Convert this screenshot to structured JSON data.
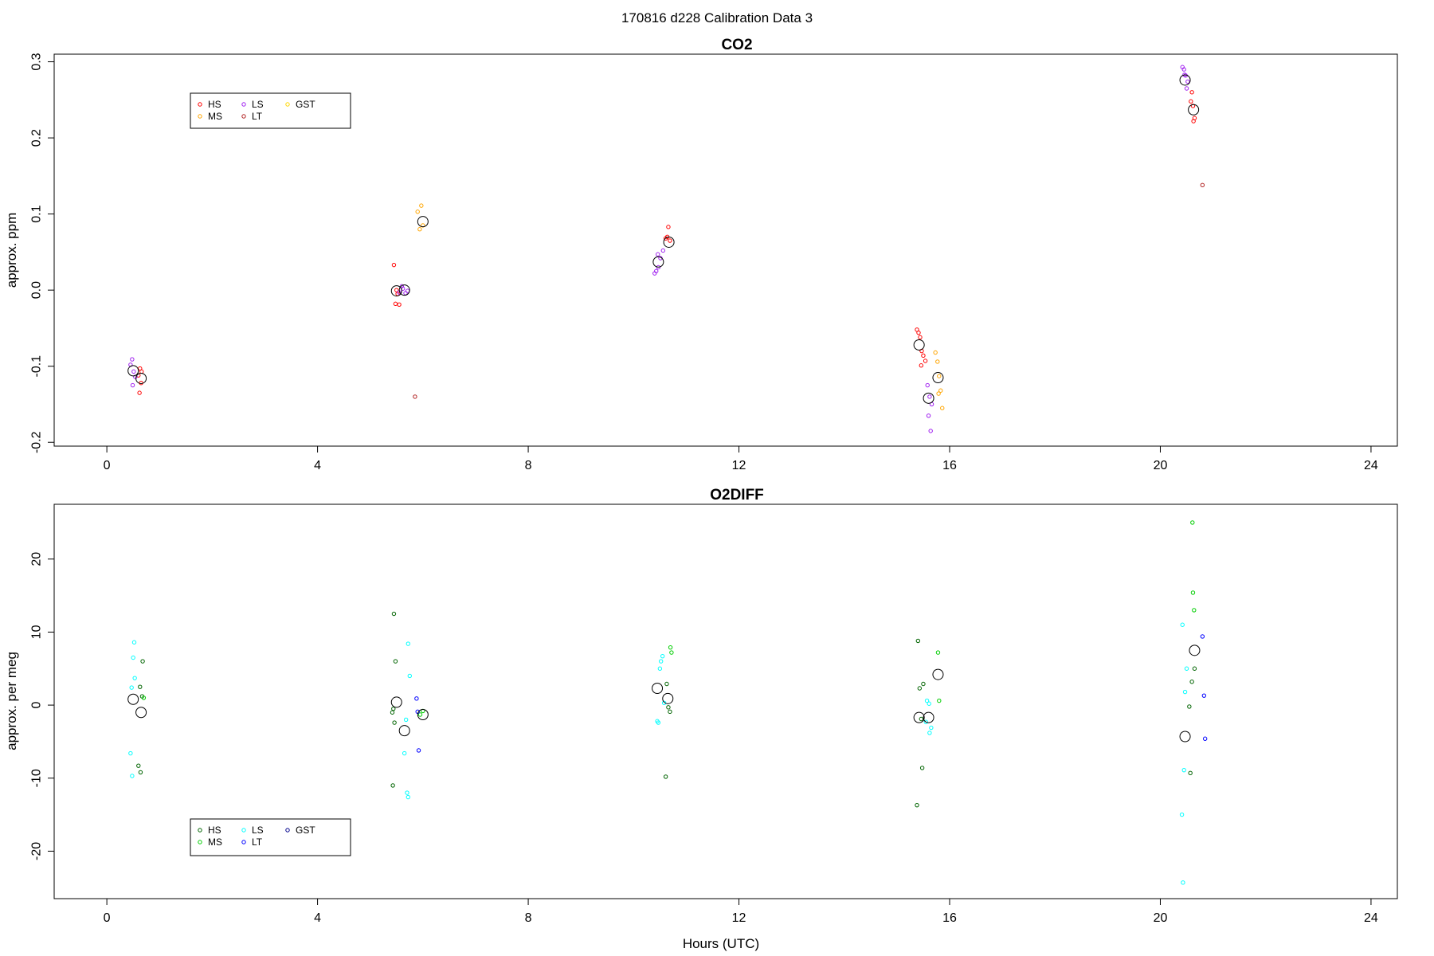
{
  "figure": {
    "title": "170816   d228   Calibration Data 3",
    "xlabel": "Hours (UTC)"
  },
  "chart_data": [
    {
      "type": "scatter",
      "title": "CO2",
      "xlabel": "",
      "ylabel": "approx. ppm",
      "xlim": [
        -1,
        24.5
      ],
      "ylim": [
        -0.205,
        0.31
      ],
      "xticks": [
        0,
        4,
        8,
        12,
        16,
        20,
        24
      ],
      "yticks": [
        -0.2,
        -0.1,
        0.0,
        0.1,
        0.2,
        0.3
      ],
      "ytick_labels": [
        "-0.2",
        "-0.1",
        "0.0",
        "0.1",
        "0.2",
        "0.3"
      ],
      "grid": false,
      "legend_position": "top-left",
      "legend_columns": [
        [
          "HS",
          "MS"
        ],
        [
          "LS",
          "LT"
        ],
        [
          "GST"
        ]
      ],
      "series": [
        {
          "name": "HS",
          "color": "#ff0000",
          "points": [
            [
              0.63,
              -0.103
            ],
            [
              0.66,
              -0.107
            ],
            [
              0.6,
              -0.112
            ],
            [
              0.65,
              -0.122
            ],
            [
              0.62,
              -0.135
            ],
            [
              5.45,
              0.033
            ],
            [
              5.52,
              -0.005
            ],
            [
              5.48,
              -0.018
            ],
            [
              5.55,
              -0.019
            ],
            [
              5.5,
              0.0
            ],
            [
              10.66,
              0.083
            ],
            [
              10.61,
              0.068
            ],
            [
              10.69,
              0.065
            ],
            [
              10.64,
              0.07
            ],
            [
              15.38,
              -0.052
            ],
            [
              15.41,
              -0.056
            ],
            [
              15.44,
              -0.062
            ],
            [
              15.47,
              -0.08
            ],
            [
              15.5,
              -0.086
            ],
            [
              15.54,
              -0.093
            ],
            [
              15.46,
              -0.099
            ],
            [
              20.58,
              0.248
            ],
            [
              20.62,
              0.242
            ],
            [
              20.65,
              0.226
            ],
            [
              20.63,
              0.222
            ],
            [
              20.6,
              0.26
            ]
          ]
        },
        {
          "name": "MS",
          "color": "#ffa500",
          "points": [
            [
              5.9,
              0.103
            ],
            [
              5.94,
              0.08
            ],
            [
              6.0,
              0.085
            ],
            [
              5.97,
              0.111
            ],
            [
              15.73,
              -0.082
            ],
            [
              15.77,
              -0.094
            ],
            [
              15.8,
              -0.113
            ],
            [
              15.83,
              -0.132
            ],
            [
              15.86,
              -0.155
            ],
            [
              15.79,
              -0.136
            ]
          ]
        },
        {
          "name": "LS",
          "color": "#a020f0",
          "points": [
            [
              0.48,
              -0.091
            ],
            [
              0.45,
              -0.098
            ],
            [
              0.51,
              -0.107
            ],
            [
              0.54,
              -0.114
            ],
            [
              0.49,
              -0.125
            ],
            [
              5.55,
              -0.003
            ],
            [
              5.62,
              0.002
            ],
            [
              5.67,
              -0.004
            ],
            [
              5.6,
              0.005
            ],
            [
              5.71,
              -0.001
            ],
            [
              10.43,
              0.025
            ],
            [
              10.47,
              0.03
            ],
            [
              10.51,
              0.042
            ],
            [
              10.56,
              0.052
            ],
            [
              10.46,
              0.047
            ],
            [
              10.4,
              0.022
            ],
            [
              15.58,
              -0.125
            ],
            [
              15.62,
              -0.14
            ],
            [
              15.66,
              -0.15
            ],
            [
              15.6,
              -0.165
            ],
            [
              15.64,
              -0.185
            ],
            [
              20.42,
              0.293
            ],
            [
              20.45,
              0.29
            ],
            [
              20.48,
              0.282
            ],
            [
              20.52,
              0.274
            ],
            [
              20.5,
              0.265
            ],
            [
              20.46,
              0.283
            ]
          ]
        },
        {
          "name": "LT",
          "color": "#b22222",
          "points": [
            [
              5.85,
              -0.14
            ],
            [
              20.8,
              0.138
            ]
          ]
        },
        {
          "name": "GST",
          "color": "#ffd700",
          "points": []
        }
      ],
      "means": [
        [
          0.5,
          -0.106
        ],
        [
          0.65,
          -0.116
        ],
        [
          5.5,
          -0.001
        ],
        [
          5.65,
          0.0
        ],
        [
          6.0,
          0.09
        ],
        [
          10.47,
          0.037
        ],
        [
          10.67,
          0.063
        ],
        [
          15.42,
          -0.072
        ],
        [
          15.6,
          -0.142
        ],
        [
          15.78,
          -0.115
        ],
        [
          20.47,
          0.276
        ],
        [
          20.63,
          0.237
        ]
      ]
    },
    {
      "type": "scatter",
      "title": "O2DIFF",
      "xlabel": "Hours (UTC)",
      "ylabel": "approx. per meg",
      "xlim": [
        -1,
        24.5
      ],
      "ylim": [
        -26.5,
        27.5
      ],
      "xticks": [
        0,
        4,
        8,
        12,
        16,
        20,
        24
      ],
      "yticks": [
        -20,
        -10,
        0,
        10,
        20
      ],
      "ytick_labels": [
        "-20",
        "-10",
        "0",
        "10",
        "20"
      ],
      "grid": false,
      "legend_position": "bottom-left",
      "legend_columns": [
        [
          "HS",
          "MS"
        ],
        [
          "LS",
          "LT"
        ],
        [
          "GST"
        ]
      ],
      "series": [
        {
          "name": "HS",
          "color": "#006400",
          "points": [
            [
              0.68,
              6.0
            ],
            [
              0.63,
              2.5
            ],
            [
              0.67,
              1.2
            ],
            [
              0.6,
              -8.3
            ],
            [
              0.64,
              -9.2
            ],
            [
              5.45,
              12.5
            ],
            [
              5.48,
              6.0
            ],
            [
              5.44,
              -0.5
            ],
            [
              5.42,
              -1.0
            ],
            [
              5.46,
              -2.4
            ],
            [
              5.43,
              -11.0
            ],
            [
              10.63,
              2.9
            ],
            [
              10.66,
              -0.3
            ],
            [
              10.69,
              -0.9
            ],
            [
              10.61,
              -9.8
            ],
            [
              15.4,
              8.8
            ],
            [
              15.43,
              2.3
            ],
            [
              15.5,
              2.9
            ],
            [
              15.46,
              -1.9
            ],
            [
              15.48,
              -8.6
            ],
            [
              15.38,
              -13.7
            ],
            [
              20.55,
              -0.2
            ],
            [
              20.6,
              3.2
            ],
            [
              20.65,
              5.0
            ],
            [
              20.57,
              -9.3
            ]
          ]
        },
        {
          "name": "MS",
          "color": "#00cd00",
          "points": [
            [
              0.7,
              1.0
            ],
            [
              6.0,
              -0.8
            ],
            [
              5.95,
              -1.3
            ],
            [
              10.7,
              7.9
            ],
            [
              10.72,
              7.2
            ],
            [
              15.78,
              7.2
            ],
            [
              15.8,
              0.6
            ],
            [
              20.61,
              25.0
            ],
            [
              20.62,
              15.4
            ],
            [
              20.64,
              13.0
            ]
          ]
        },
        {
          "name": "LS",
          "color": "#00ffff",
          "points": [
            [
              0.52,
              8.6
            ],
            [
              0.5,
              6.5
            ],
            [
              0.53,
              3.7
            ],
            [
              0.47,
              2.4
            ],
            [
              0.45,
              -6.6
            ],
            [
              0.48,
              -9.7
            ],
            [
              5.72,
              8.4
            ],
            [
              5.75,
              4.0
            ],
            [
              5.68,
              -2.0
            ],
            [
              5.65,
              -6.6
            ],
            [
              5.7,
              -12.0
            ],
            [
              5.72,
              -12.6
            ],
            [
              10.55,
              6.7
            ],
            [
              10.52,
              6.0
            ],
            [
              10.5,
              5.0
            ],
            [
              10.58,
              0.3
            ],
            [
              10.45,
              -2.2
            ],
            [
              10.47,
              -2.4
            ],
            [
              15.57,
              0.6
            ],
            [
              15.61,
              0.2
            ],
            [
              15.55,
              -2.3
            ],
            [
              15.65,
              -3.1
            ],
            [
              15.62,
              -3.8
            ],
            [
              20.42,
              11.0
            ],
            [
              20.5,
              5.0
            ],
            [
              20.47,
              1.8
            ],
            [
              20.45,
              -8.9
            ],
            [
              20.41,
              -15.0
            ],
            [
              20.43,
              -24.3
            ]
          ]
        },
        {
          "name": "LT",
          "color": "#0000ff",
          "points": [
            [
              5.88,
              0.9
            ],
            [
              5.9,
              -0.9
            ],
            [
              5.92,
              -6.2
            ],
            [
              20.8,
              9.4
            ],
            [
              20.83,
              1.3
            ],
            [
              20.85,
              -4.6
            ]
          ]
        },
        {
          "name": "GST",
          "color": "#00008b",
          "points": []
        }
      ],
      "means": [
        [
          0.5,
          0.8
        ],
        [
          0.65,
          -1.0
        ],
        [
          5.5,
          0.4
        ],
        [
          5.65,
          -3.5
        ],
        [
          6.0,
          -1.3
        ],
        [
          10.45,
          2.3
        ],
        [
          10.65,
          0.9
        ],
        [
          15.42,
          -1.7
        ],
        [
          15.6,
          -1.7
        ],
        [
          15.78,
          4.2
        ],
        [
          20.47,
          -4.3
        ],
        [
          20.65,
          7.5
        ]
      ]
    }
  ]
}
